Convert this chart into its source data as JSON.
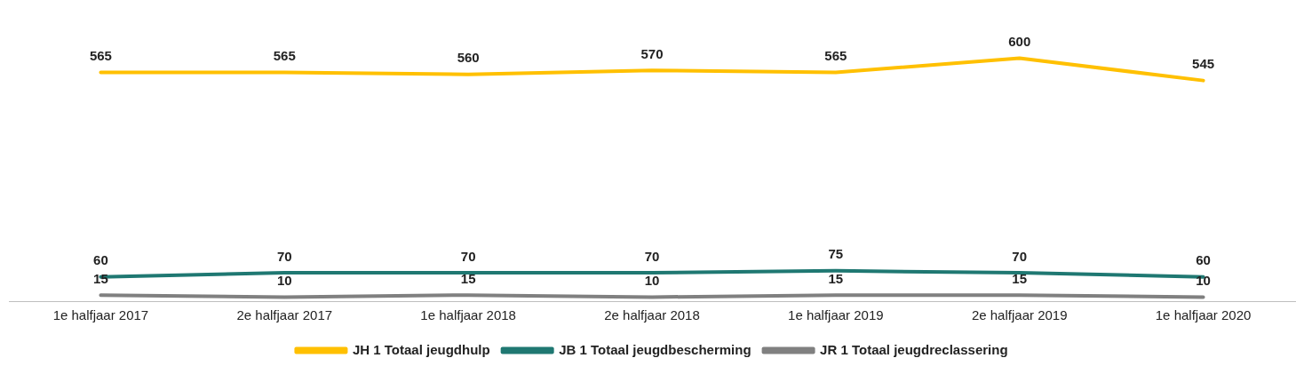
{
  "chart_data": {
    "type": "line",
    "categories": [
      "1e halfjaar 2017",
      "2e halfjaar 2017",
      "1e halfjaar 2018",
      "2e halfjaar 2018",
      "1e halfjaar 2019",
      "2e halfjaar 2019",
      "1e halfjaar 2020"
    ],
    "series": [
      {
        "name": "JH 1 Totaal jeugdhulp",
        "color": "#ffc000",
        "values": [
          565,
          565,
          560,
          570,
          565,
          600,
          545
        ]
      },
      {
        "name": "JB 1 Totaal jeugdbescherming",
        "color": "#1f7872",
        "values": [
          60,
          70,
          70,
          70,
          75,
          70,
          60
        ]
      },
      {
        "name": "JR 1 Totaal jeugdreclassering",
        "color": "#808080",
        "values": [
          15,
          10,
          15,
          10,
          15,
          15,
          10
        ]
      }
    ],
    "tick_labels": "x",
    "grid": false,
    "legend": "bottom",
    "marker": "none",
    "line_style": "solid",
    "data_labels": true
  }
}
